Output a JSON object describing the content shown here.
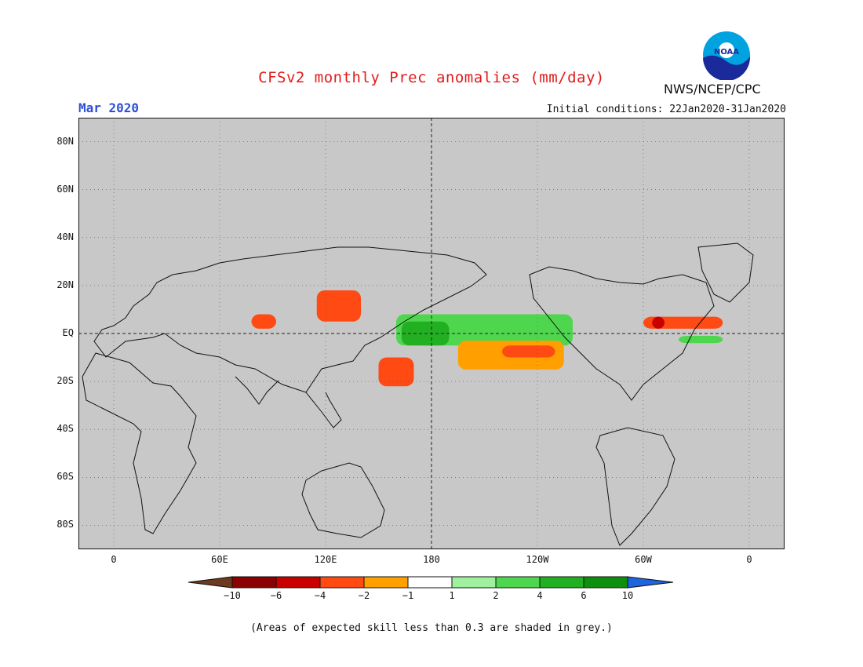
{
  "header": {
    "title": "CFSv2 monthly Prec anomalies (mm/day)",
    "month": "Mar 2020",
    "initial_conditions": "Initial conditions: 22Jan2020-31Jan2020",
    "agency": "NWS/NCEP/CPC",
    "logo_icon": "noaa-logo-icon",
    "logo_text": "NOAA"
  },
  "map": {
    "projection": "equirectangular",
    "lon_range": [
      -20,
      380
    ],
    "lat_range": [
      -90,
      90
    ],
    "background_color": "#c8c8c8",
    "lat_labels": [
      "80N",
      "60N",
      "40N",
      "20N",
      "EQ",
      "20S",
      "40S",
      "60S",
      "80S"
    ],
    "lon_labels": [
      "0",
      "60E",
      "120E",
      "180",
      "120W",
      "60W",
      "0"
    ],
    "anomaly_regions": [
      {
        "name": "central-pacific-wet",
        "color": "#4fd64f",
        "lon": [
          160,
          260
        ],
        "lat": [
          -5,
          8
        ]
      },
      {
        "name": "dateline-strong-wet",
        "color": "#22b022",
        "lon": [
          163,
          190
        ],
        "lat": [
          -5,
          5
        ]
      },
      {
        "name": "se-pacific-dry",
        "color": "#ff9f00",
        "lon": [
          195,
          255
        ],
        "lat": [
          -15,
          -3
        ]
      },
      {
        "name": "se-pacific-strong-dry",
        "color": "#ff4a14",
        "lon": [
          220,
          250
        ],
        "lat": [
          -10,
          -5
        ]
      },
      {
        "name": "philippines-dry",
        "color": "#ff4a14",
        "lon": [
          115,
          140
        ],
        "lat": [
          5,
          18
        ]
      },
      {
        "name": "indian-ocean-dry",
        "color": "#ff4a14",
        "lon": [
          78,
          92
        ],
        "lat": [
          2,
          8
        ]
      },
      {
        "name": "nw-australia-dry",
        "color": "#ff4a14",
        "lon": [
          150,
          170
        ],
        "lat": [
          -22,
          -10
        ]
      },
      {
        "name": "atlantic-dry",
        "color": "#ff4a14",
        "lon": [
          300,
          345
        ],
        "lat": [
          2,
          7
        ]
      },
      {
        "name": "amazon-strong-dry",
        "color": "#c80000",
        "lon": [
          305,
          312
        ],
        "lat": [
          2,
          7
        ]
      },
      {
        "name": "brazil-wet",
        "color": "#4fd64f",
        "lon": [
          320,
          345
        ],
        "lat": [
          -4,
          -1
        ]
      }
    ]
  },
  "colorbar": {
    "labels": [
      "−10",
      "−6",
      "−4",
      "−2",
      "−1",
      "1",
      "2",
      "4",
      "6",
      "10"
    ],
    "colors": [
      "#8b0000",
      "#c80000",
      "#ff4a14",
      "#ff9f00",
      "#ffffff",
      "#9ff09f",
      "#4fd64f",
      "#22b022",
      "#0e8f0e"
    ],
    "low_end_color": "#6b3a1f",
    "high_end_color": "#1e64dc"
  },
  "footnote": "(Areas of expected skill less than 0.3 are shaded in grey.)"
}
